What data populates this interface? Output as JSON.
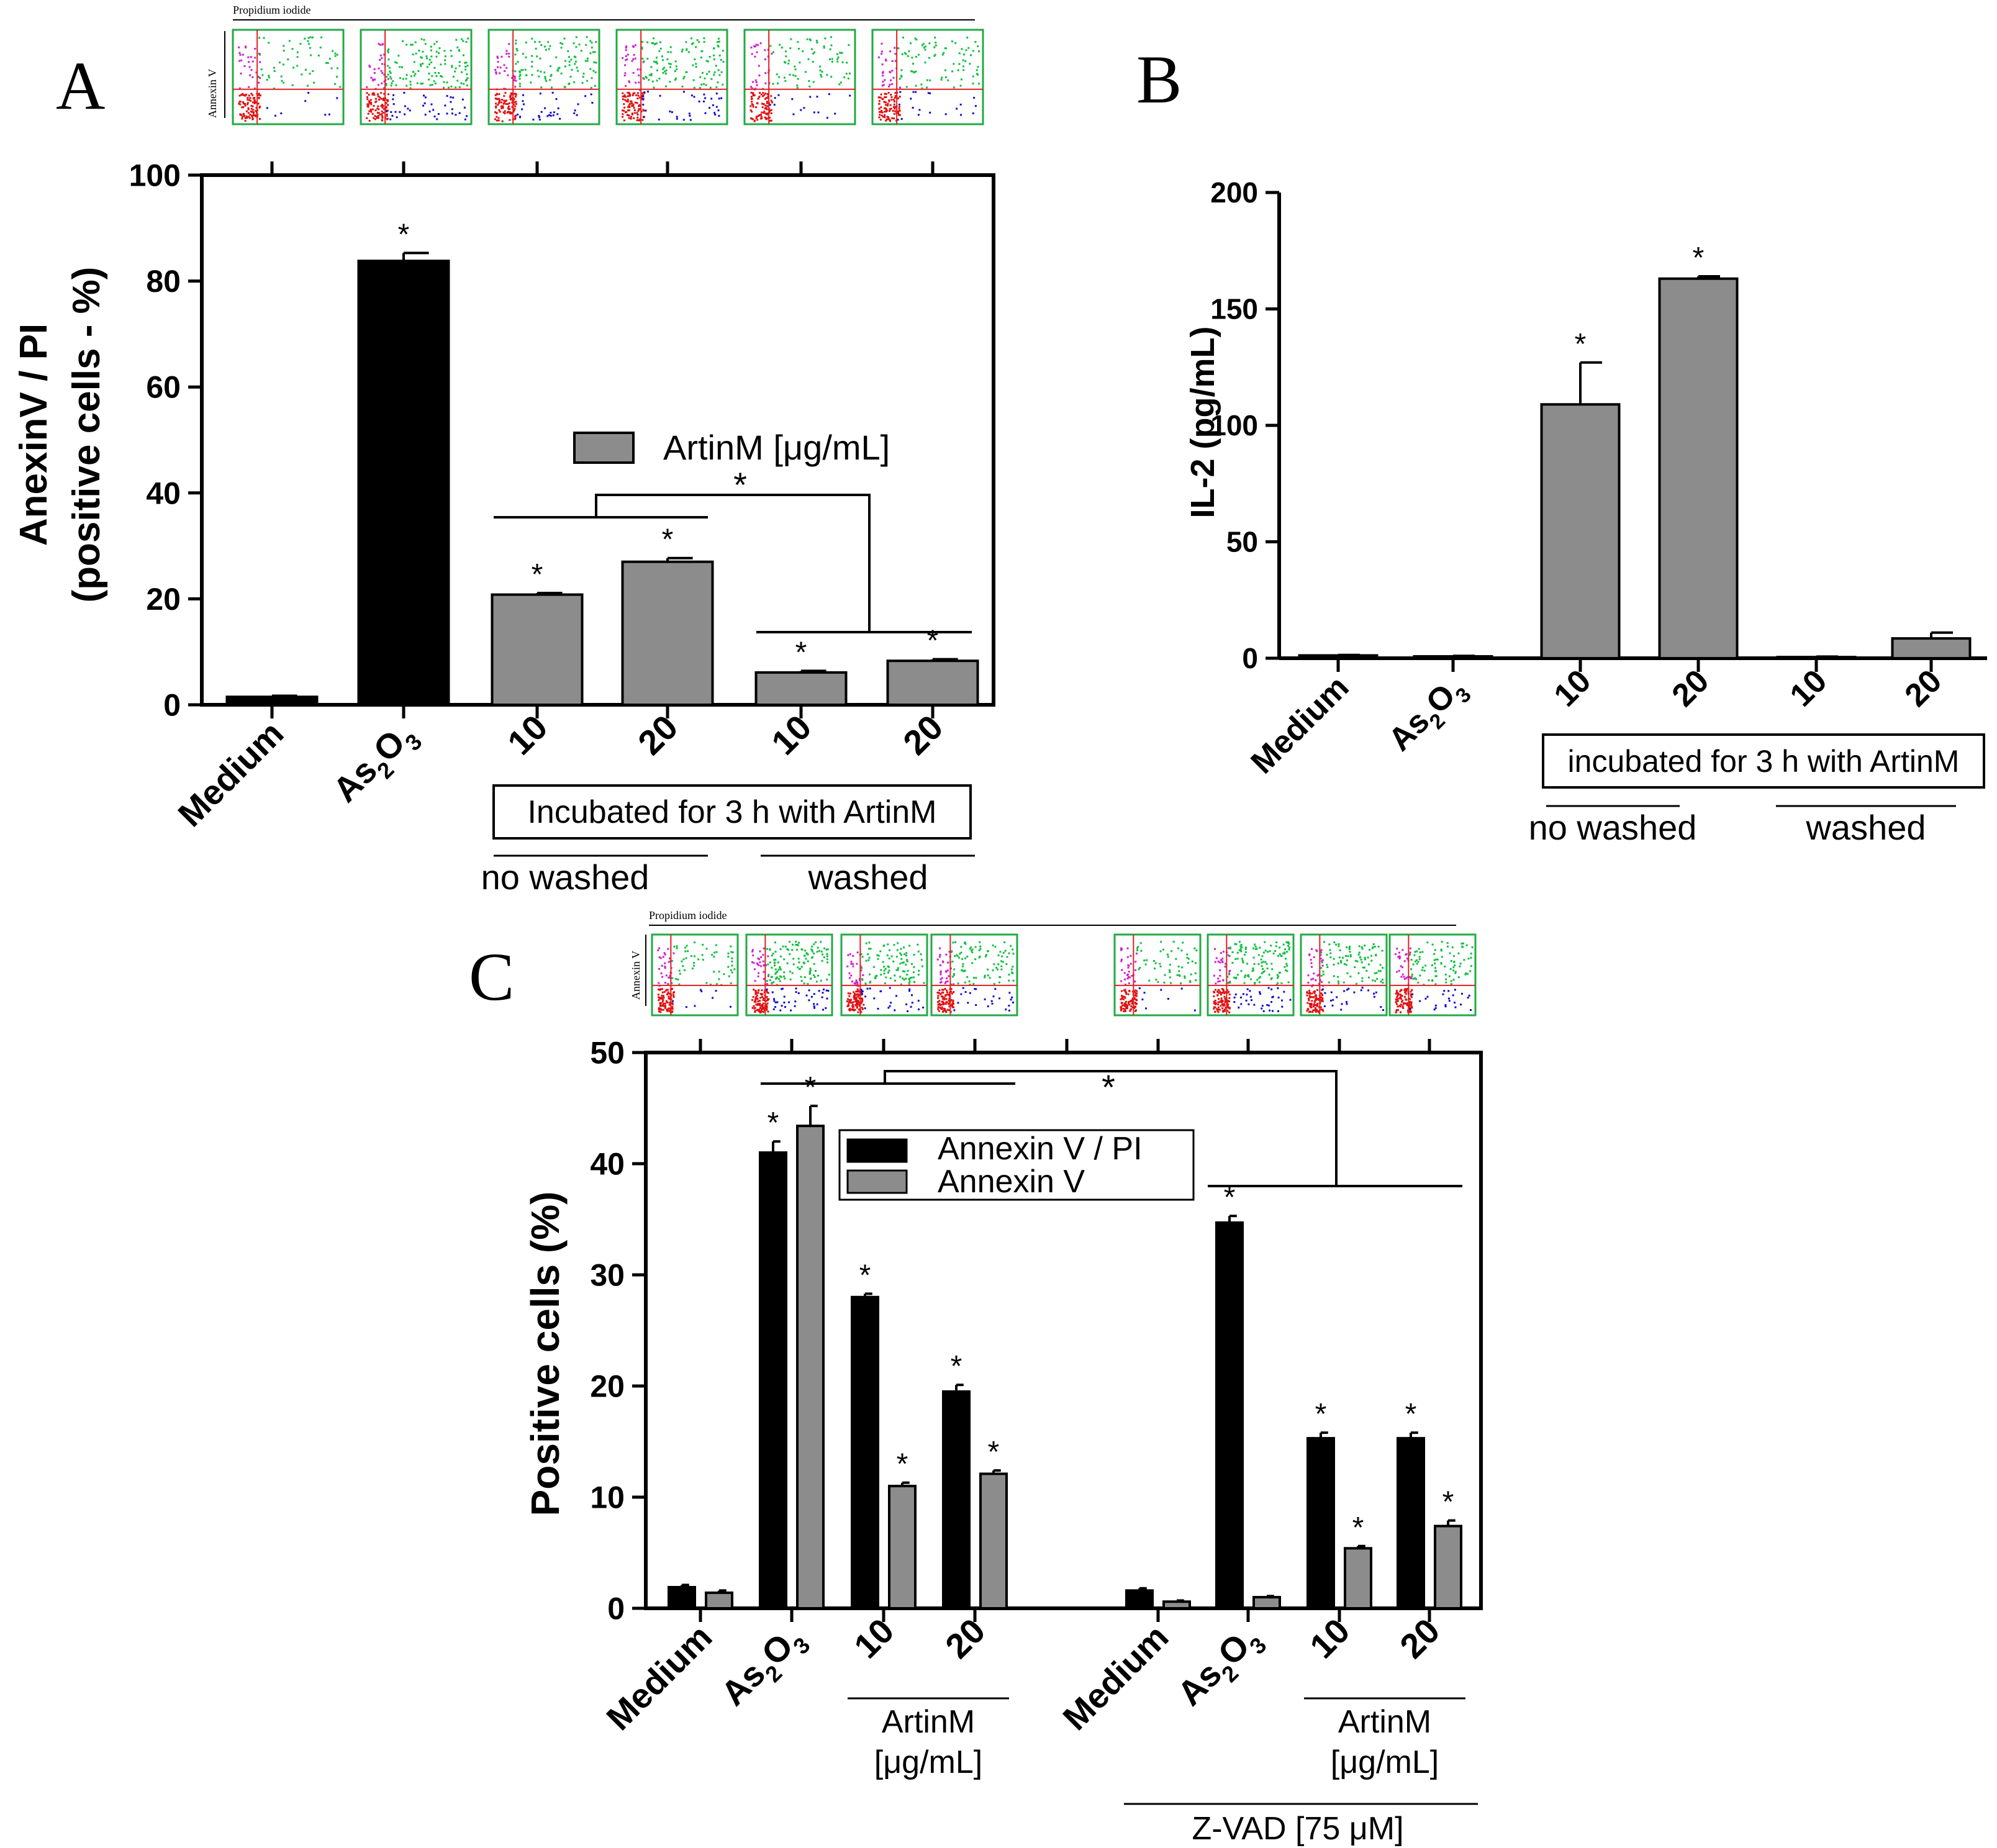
{
  "colors": {
    "black_bar": "#000000",
    "gray_bar": "#8c8c8c",
    "axis": "#000000",
    "flow_frame": "#22aa44",
    "flow_gate": "#e02020"
  },
  "panel_labels": {
    "a": "A",
    "b": "B",
    "c": "C"
  },
  "flow_plots": {
    "x_label": "Propidium iodide",
    "y_label": "Annexin V",
    "dot_colors": [
      "red",
      "magenta",
      "green",
      "blue"
    ]
  },
  "chart_data": [
    {
      "panel": "A",
      "type": "bar",
      "ylabel_line1": "AnexinV / PI",
      "ylabel_line2": "(positive cells - %)",
      "ylim": [
        0,
        100
      ],
      "ytick_labels": [
        "0",
        "20",
        "40",
        "60",
        "80",
        "100"
      ],
      "categories": [
        "Medium",
        "As",
        "10",
        "20",
        "10",
        "20"
      ],
      "as2o3": {
        "base": "As",
        "sub1": "2",
        "mid": "O",
        "sub2": "3"
      },
      "values": [
        1.5,
        83.8,
        20.8,
        27.0,
        6.1,
        8.3
      ],
      "errors": [
        0.2,
        1.5,
        0.3,
        0.7,
        0.3,
        0.3
      ],
      "bar_colors": [
        "black",
        "black",
        "gray",
        "gray",
        "gray",
        "gray"
      ],
      "significance": [
        "",
        "*",
        "*",
        "*",
        "*",
        "*"
      ],
      "legend": "ArtinM [μg/mL]",
      "bracket_star": "*",
      "box_label": "Incubated for 3 h with ArtinM",
      "group_labels": [
        "no washed",
        "washed"
      ]
    },
    {
      "panel": "B",
      "type": "bar",
      "ylabel": "IL-2 (pg/mL)",
      "ylim": [
        0,
        200
      ],
      "ytick_labels": [
        "0",
        "50",
        "100",
        "150",
        "200"
      ],
      "categories": [
        "Medium",
        "As",
        "10",
        "20",
        "10",
        "20"
      ],
      "values": [
        1.2,
        0.8,
        109,
        163,
        0.5,
        8.5
      ],
      "errors": [
        0.2,
        0.2,
        18,
        1,
        0.2,
        2.5
      ],
      "significance": [
        "",
        "",
        "*",
        "*",
        "",
        ""
      ],
      "box_label": "incubated for 3 h with ArtinM",
      "group_labels": [
        "no washed",
        "washed"
      ]
    },
    {
      "panel": "C",
      "type": "bar",
      "ylabel": "Positive cells (%)",
      "ylim": [
        0,
        50
      ],
      "ytick_labels": [
        "0",
        "10",
        "20",
        "30",
        "40",
        "50"
      ],
      "categories": [
        "Medium",
        "As",
        "10",
        "20",
        "Medium",
        "As",
        "10",
        "20"
      ],
      "series": [
        {
          "name": "Annexin V / PI",
          "color": "black",
          "values": [
            1.9,
            41.0,
            28.0,
            19.5,
            1.6,
            34.7,
            15.3,
            15.3
          ],
          "errors": [
            0.2,
            1.0,
            0.3,
            0.6,
            0.2,
            0.6,
            0.5,
            0.5
          ],
          "significance": [
            "",
            "*",
            "*",
            "*",
            "",
            "*",
            "*",
            "*"
          ]
        },
        {
          "name": "Annexin V",
          "color": "gray",
          "values": [
            1.4,
            43.4,
            11.0,
            12.1,
            0.6,
            1.0,
            5.4,
            7.4
          ],
          "errors": [
            0.2,
            1.8,
            0.3,
            0.3,
            0.1,
            0.1,
            0.2,
            0.5
          ],
          "significance": [
            "",
            "*",
            "*",
            "*",
            "",
            "",
            "*",
            "*"
          ]
        }
      ],
      "bracket_star": "*",
      "artinm_line1": "ArtinM",
      "artinm_line2": "[μg/mL]",
      "zvad_label": "Z-VAD [75 μM]"
    }
  ]
}
